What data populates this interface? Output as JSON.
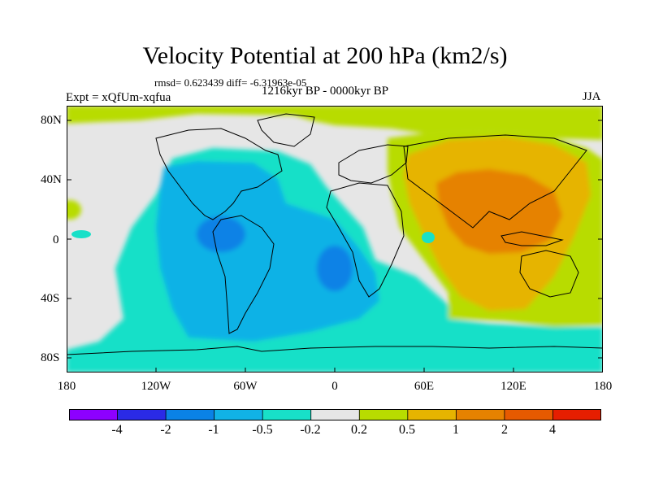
{
  "title": "Velocity Potential at 200 hPa (km2/s)",
  "stats_line": "rmsd= 0.623439 diff= -6.31963e-05",
  "experiment": "Expt = xQfUm-xqfua",
  "period": "1216kyr BP - 0000kyr BP",
  "season": "JJA",
  "map": {
    "lon_range": [
      -180,
      180
    ],
    "lat_range": [
      -90,
      90
    ],
    "y_tick_labels": [
      "80N",
      "40N",
      "0",
      "40S",
      "80S"
    ],
    "x_tick_labels": [
      "180",
      "120W",
      "60W",
      "0",
      "60E",
      "120E",
      "180"
    ]
  },
  "colorbar": {
    "colors": [
      "#8d00ff",
      "#2a2ae6",
      "#0a82e6",
      "#11b2e6",
      "#18e0c8",
      "#e6e6e6",
      "#b8dc00",
      "#e6b400",
      "#e68200",
      "#e65a00",
      "#e61e00"
    ],
    "labels": [
      "-4",
      "-2",
      "-1",
      "-0.5",
      "-0.2",
      "0.2",
      "0.5",
      "1",
      "2",
      "4"
    ]
  }
}
